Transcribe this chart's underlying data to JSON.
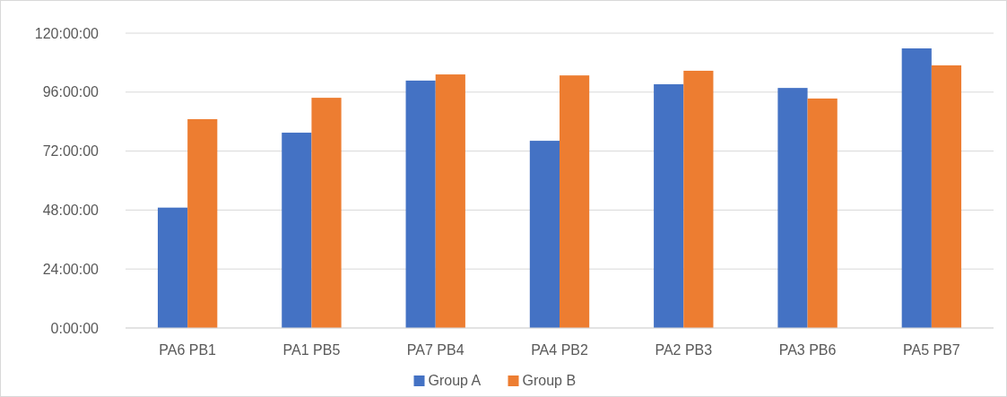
{
  "chart_data": {
    "type": "bar",
    "categories": [
      "PA6 PB1",
      "PA1 PB5",
      "PA7 PB4",
      "PA4 PB2",
      "PA2 PB3",
      "PA3 PB6",
      "PA5 PB7"
    ],
    "series": [
      {
        "name": "Group A",
        "color": "#4472c4",
        "values": [
          49,
          79.5,
          100.7,
          76.2,
          99.2,
          97.7,
          113.8
        ]
      },
      {
        "name": "Group B",
        "color": "#ed7d31",
        "values": [
          85,
          93.7,
          103.2,
          102.8,
          104.7,
          93.4,
          106.9
        ]
      }
    ],
    "ylim": [
      0,
      120
    ],
    "yticks": [
      {
        "value": 0,
        "label": "0:00:00"
      },
      {
        "value": 24,
        "label": "24:00:00"
      },
      {
        "value": 48,
        "label": "48:00:00"
      },
      {
        "value": 72,
        "label": "72:00:00"
      },
      {
        "value": 96,
        "label": "96:00:00"
      },
      {
        "value": 120,
        "label": "120:00:00"
      }
    ],
    "grid": "y",
    "legend": "bottom"
  }
}
